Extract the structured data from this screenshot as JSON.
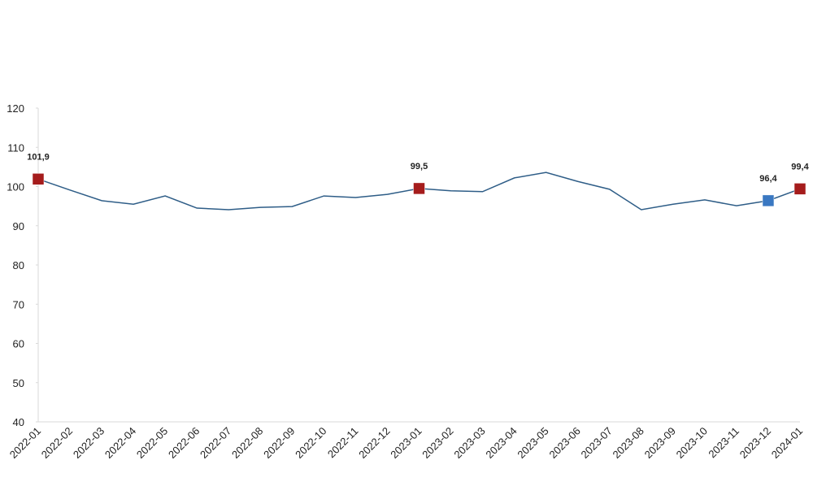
{
  "chart_data": {
    "type": "line",
    "categories": [
      "2022-01",
      "2022-02",
      "2022-03",
      "2022-04",
      "2022-05",
      "2022-06",
      "2022-07",
      "2022-08",
      "2022-09",
      "2022-10",
      "2022-11",
      "2022-12",
      "2023-01",
      "2023-02",
      "2023-03",
      "2023-04",
      "2023-05",
      "2023-06",
      "2023-07",
      "2023-08",
      "2023-09",
      "2023-10",
      "2023-11",
      "2023-12",
      "2024-01"
    ],
    "series": [
      {
        "color": "#2e5d87",
        "values": [
          101.9,
          99.1,
          96.4,
          95.5,
          97.6,
          94.5,
          94.1,
          94.7,
          94.9,
          97.6,
          97.2,
          98.0,
          99.5,
          98.9,
          98.7,
          102.2,
          103.6,
          101.3,
          99.3,
          94.1,
          95.5,
          96.6,
          95.1,
          96.4,
          99.4
        ],
        "value_labels": [
          "101,9",
          null,
          null,
          null,
          null,
          null,
          null,
          null,
          null,
          null,
          null,
          null,
          "99,5",
          null,
          null,
          null,
          null,
          null,
          null,
          null,
          null,
          null,
          null,
          "96,4",
          "99,4"
        ],
        "marker_colors": [
          "#a51c1c",
          null,
          null,
          null,
          null,
          null,
          null,
          null,
          null,
          null,
          null,
          null,
          "#a51c1c",
          null,
          null,
          null,
          null,
          null,
          null,
          null,
          null,
          null,
          null,
          "#3a78c2",
          "#a51c1c"
        ]
      }
    ],
    "ylim": [
      40,
      120
    ],
    "yticks": [
      40,
      50,
      60,
      70,
      80,
      90,
      100,
      110,
      120
    ],
    "grid": false
  }
}
